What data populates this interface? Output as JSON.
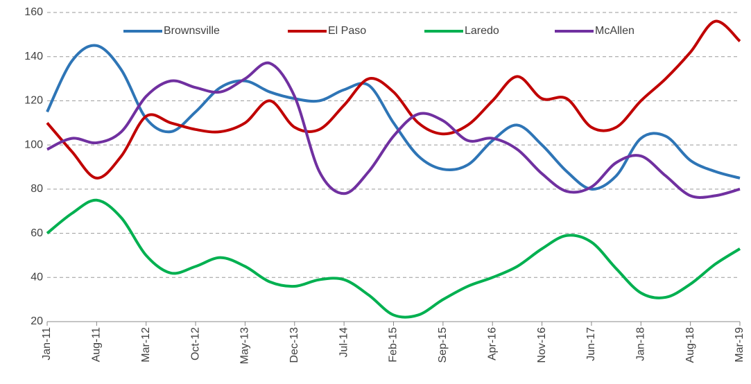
{
  "chart_data": {
    "type": "line",
    "categories": [
      "Jan-11",
      null,
      "Aug-11",
      null,
      "Mar-12",
      null,
      "Oct-12",
      null,
      "May-13",
      null,
      "Dec-13",
      null,
      "Jul-14",
      null,
      "Feb-15",
      null,
      "Sep-15",
      null,
      "Apr-16",
      null,
      "Nov-16",
      null,
      "Jun-17",
      null,
      "Jan-18",
      null,
      "Aug-18",
      null,
      "Mar-19"
    ],
    "series": [
      {
        "name": "Brownsville",
        "color": "#2e75b6",
        "values": [
          115,
          138,
          145,
          134,
          112,
          106,
          115,
          126,
          129,
          124,
          121,
          120,
          125,
          127,
          110,
          95,
          89,
          91,
          102,
          109,
          100,
          88,
          80,
          86,
          103,
          104,
          93,
          88,
          85
        ]
      },
      {
        "name": "El Paso",
        "color": "#c00000",
        "values": [
          110,
          97,
          85,
          95,
          113,
          110,
          107,
          106,
          110,
          120,
          108,
          107,
          118,
          130,
          124,
          110,
          105,
          109,
          120,
          131,
          121,
          121,
          108,
          108,
          120,
          130,
          142,
          156,
          147
        ]
      },
      {
        "name": "Laredo",
        "color": "#00b050",
        "values": [
          60,
          69,
          75,
          67,
          50,
          42,
          45,
          49,
          45,
          38,
          36,
          39,
          39,
          32,
          23,
          23,
          30,
          36,
          40,
          45,
          53,
          59,
          56,
          44,
          33,
          31,
          37,
          46,
          53
        ]
      },
      {
        "name": "McAllen",
        "color": "#7030a0",
        "values": [
          98,
          103,
          101,
          106,
          122,
          129,
          126,
          124,
          130,
          137,
          122,
          88,
          78,
          88,
          104,
          114,
          111,
          102,
          103,
          98,
          87,
          79,
          81,
          92,
          95,
          86,
          77,
          77,
          80
        ]
      }
    ],
    "ylim": [
      20,
      160
    ],
    "yticks": [
      20,
      40,
      60,
      80,
      100,
      120,
      140,
      160
    ],
    "grid": true,
    "legend": "top"
  }
}
